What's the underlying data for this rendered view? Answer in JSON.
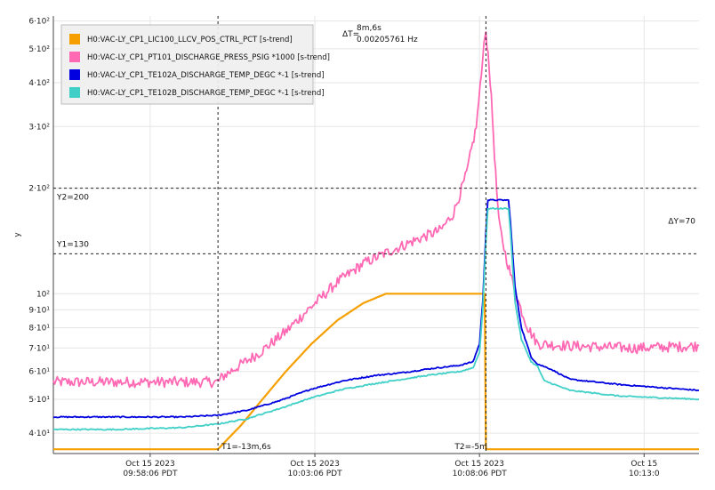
{
  "chart_data": {
    "type": "line",
    "y_scale": "log",
    "ylabel": "y",
    "ylim": [
      35,
      620
    ],
    "xlim": [
      0,
      1000
    ],
    "y_ticks": [
      {
        "label": "4·10¹",
        "value": 40
      },
      {
        "label": "5·10¹",
        "value": 50
      },
      {
        "label": "6·10¹",
        "value": 60
      },
      {
        "label": "7·10¹",
        "value": 70
      },
      {
        "label": "8·10¹",
        "value": 80
      },
      {
        "label": "9·10¹",
        "value": 90
      },
      {
        "label": "10²",
        "value": 100
      },
      {
        "label": "2·10²",
        "value": 200
      },
      {
        "label": "3·10²",
        "value": 300
      },
      {
        "label": "4·10²",
        "value": 400
      },
      {
        "label": "5·10²",
        "value": 500
      },
      {
        "label": "6·10²",
        "value": 600
      }
    ],
    "x_ticks": [
      {
        "line1": "Oct 15 2023",
        "line2": "09:58:06 PDT",
        "x": 150
      },
      {
        "line1": "Oct 15 2023",
        "line2": "10:03:06 PDT",
        "x": 405
      },
      {
        "line1": "Oct 15 2023",
        "line2": "10:08:06 PDT",
        "x": 660
      },
      {
        "line1": "Oct 15",
        "line2": "10:13:0",
        "x": 915
      }
    ],
    "legend": {
      "position": "top-left",
      "entries": [
        {
          "name": "H0:VAC-LY_CP1_LIC100_LLCV_POS_CTRL_PCT [s-trend]",
          "color": "#f5a000"
        },
        {
          "name": "H0:VAC-LY_CP1_PT101_DISCHARGE_PRESS_PSIG *1000 [s-trend]",
          "color": "#ff69b4"
        },
        {
          "name": "H0:VAC-LY_CP1_TE102A_DISCHARGE_TEMP_DEGC *-1 [s-trend]",
          "color": "#0000e0"
        },
        {
          "name": "H0:VAC-LY_CP1_TE102B_DISCHARGE_TEMP_DEGC *-1 [s-trend]",
          "color": "#40d0c8"
        }
      ]
    },
    "cursors": {
      "t1": {
        "x": 255,
        "label": "T1=-13m,6s"
      },
      "t2": {
        "x": 670,
        "label": "T2=-5m"
      },
      "y1": {
        "y": 130,
        "label": "Y1=130"
      },
      "y2": {
        "y": 200,
        "label": "Y2=200"
      },
      "delta_t": {
        "label": "ΔT=",
        "value": "8m,6s",
        "freq": "0.00205761 Hz"
      },
      "delta_y": {
        "label": "ΔY=70"
      }
    },
    "series": [
      {
        "name": "H0:VAC-LY_CP1_LIC100_LLCV_POS_CTRL_PCT [s-trend]",
        "color": "#f5a000",
        "points": [
          [
            0,
            36
          ],
          [
            255,
            36
          ],
          [
            270,
            38.5
          ],
          [
            290,
            42
          ],
          [
            320,
            49
          ],
          [
            360,
            60
          ],
          [
            400,
            72
          ],
          [
            440,
            84
          ],
          [
            480,
            94
          ],
          [
            515,
            100
          ],
          [
            640,
            100
          ],
          [
            660,
            100
          ],
          [
            668,
            100
          ],
          [
            670,
            36
          ],
          [
            1000,
            36
          ]
        ]
      },
      {
        "name": "H0:VAC-LY_CP1_PT101_DISCHARGE_PRESS_PSIG *1000 [s-trend]",
        "color": "#ff69b4",
        "points": [
          [
            0,
            56
          ],
          [
            100,
            56
          ],
          [
            200,
            56
          ],
          [
            255,
            56
          ],
          [
            262,
            58
          ],
          [
            280,
            61
          ],
          [
            320,
            68
          ],
          [
            360,
            78
          ],
          [
            400,
            92
          ],
          [
            440,
            108
          ],
          [
            480,
            122
          ],
          [
            520,
            132
          ],
          [
            560,
            142
          ],
          [
            600,
            152
          ],
          [
            620,
            170
          ],
          [
            640,
            220
          ],
          [
            655,
            300
          ],
          [
            663,
            420
          ],
          [
            667,
            520
          ],
          [
            670,
            560
          ],
          [
            675,
            450
          ],
          [
            680,
            320
          ],
          [
            685,
            220
          ],
          [
            690,
            160
          ],
          [
            700,
            130
          ],
          [
            710,
            110
          ],
          [
            720,
            95
          ],
          [
            735,
            80
          ],
          [
            750,
            72
          ],
          [
            800,
            71
          ],
          [
            900,
            70
          ],
          [
            1000,
            71
          ]
        ]
      },
      {
        "name": "H0:VAC-LY_CP1_TE102A_DISCHARGE_TEMP_DEGC *-1 [s-trend]",
        "color": "#0000e0",
        "points": [
          [
            0,
            44.5
          ],
          [
            100,
            44.5
          ],
          [
            200,
            44.5
          ],
          [
            255,
            45
          ],
          [
            300,
            46.5
          ],
          [
            350,
            49.5
          ],
          [
            400,
            53.5
          ],
          [
            450,
            56.5
          ],
          [
            500,
            58.5
          ],
          [
            540,
            59.5
          ],
          [
            580,
            61
          ],
          [
            630,
            62.5
          ],
          [
            650,
            64
          ],
          [
            660,
            72
          ],
          [
            665,
            95
          ],
          [
            670,
            150
          ],
          [
            673,
            185
          ],
          [
            705,
            185
          ],
          [
            708,
            160
          ],
          [
            715,
            105
          ],
          [
            725,
            80
          ],
          [
            740,
            66
          ],
          [
            750,
            63
          ],
          [
            760,
            62
          ],
          [
            770,
            61
          ],
          [
            800,
            57
          ],
          [
            880,
            55
          ],
          [
            1000,
            53
          ]
        ]
      },
      {
        "name": "H0:VAC-LY_CP1_TE102B_DISCHARGE_TEMP_DEGC *-1 [s-trend]",
        "color": "#40d0c8",
        "points": [
          [
            0,
            41
          ],
          [
            100,
            41
          ],
          [
            200,
            41.5
          ],
          [
            255,
            42.5
          ],
          [
            300,
            44
          ],
          [
            350,
            47
          ],
          [
            400,
            50.5
          ],
          [
            450,
            53.5
          ],
          [
            500,
            55.5
          ],
          [
            540,
            57
          ],
          [
            580,
            58.5
          ],
          [
            630,
            60
          ],
          [
            650,
            61.5
          ],
          [
            660,
            68
          ],
          [
            665,
            90
          ],
          [
            670,
            140
          ],
          [
            673,
            175
          ],
          [
            705,
            175
          ],
          [
            708,
            150
          ],
          [
            715,
            95
          ],
          [
            725,
            74
          ],
          [
            740,
            64
          ],
          [
            750,
            62
          ],
          [
            760,
            56.5
          ],
          [
            800,
            53
          ],
          [
            880,
            51
          ],
          [
            1000,
            50
          ]
        ]
      }
    ]
  }
}
